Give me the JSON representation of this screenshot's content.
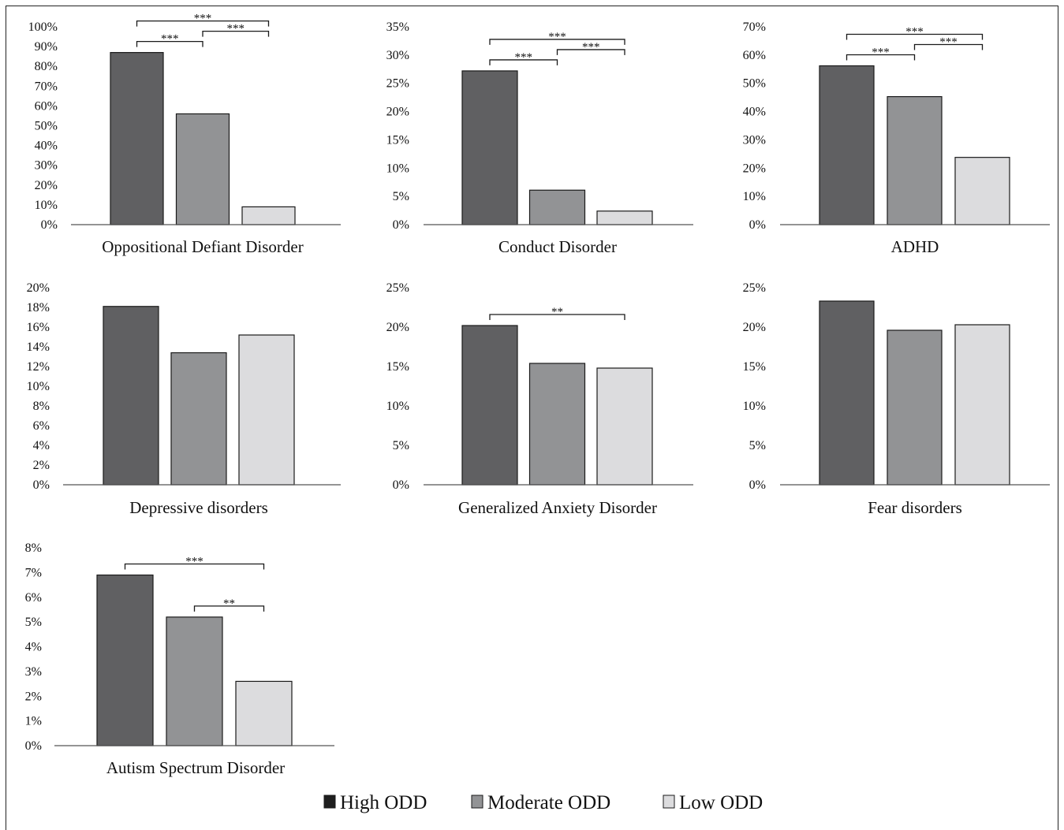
{
  "legend": [
    {
      "label": "High ODD",
      "color": "#606062"
    },
    {
      "label": "Moderate ODD",
      "color": "#929395"
    },
    {
      "label": "Low ODD",
      "color": "#dcdcde"
    }
  ],
  "chart_data": [
    {
      "type": "bar",
      "title": "Oppositional Defiant Disorder",
      "categories": [
        "High ODD",
        "Moderate ODD",
        "Low ODD"
      ],
      "values": [
        87,
        56,
        9
      ],
      "ylim": [
        0,
        100
      ],
      "yticks": [
        "0%",
        "10%",
        "20%",
        "30%",
        "40%",
        "50%",
        "60%",
        "70%",
        "80%",
        "90%",
        "100%"
      ],
      "significance": [
        {
          "from": 0,
          "to": 2,
          "label": "***"
        },
        {
          "from": 0,
          "to": 1,
          "label": "***"
        },
        {
          "from": 1,
          "to": 2,
          "label": "***"
        }
      ]
    },
    {
      "type": "bar",
      "title": "Conduct Disorder",
      "categories": [
        "High ODD",
        "Moderate ODD",
        "Low ODD"
      ],
      "values": [
        27.2,
        6.1,
        2.4
      ],
      "ylim": [
        0,
        35
      ],
      "yticks": [
        "0%",
        "5%",
        "10%",
        "15%",
        "20%",
        "25%",
        "30%",
        "35%"
      ],
      "significance": [
        {
          "from": 0,
          "to": 2,
          "label": "***"
        },
        {
          "from": 0,
          "to": 1,
          "label": "***"
        },
        {
          "from": 1,
          "to": 2,
          "label": "***"
        }
      ]
    },
    {
      "type": "bar",
      "title": "ADHD",
      "categories": [
        "High ODD",
        "Moderate ODD",
        "Low ODD"
      ],
      "values": [
        56.2,
        45.3,
        23.8
      ],
      "ylim": [
        0,
        70
      ],
      "yticks": [
        "0%",
        "10%",
        "20%",
        "30%",
        "40%",
        "50%",
        "60%",
        "70%"
      ],
      "significance": [
        {
          "from": 0,
          "to": 2,
          "label": "***"
        },
        {
          "from": 0,
          "to": 1,
          "label": "***"
        },
        {
          "from": 1,
          "to": 2,
          "label": "***"
        }
      ]
    },
    {
      "type": "bar",
      "title": "Depressive disorders",
      "categories": [
        "High ODD",
        "Moderate ODD",
        "Low ODD"
      ],
      "values": [
        18.1,
        13.4,
        15.2
      ],
      "ylim": [
        0,
        20
      ],
      "yticks": [
        "0%",
        "2%",
        "4%",
        "6%",
        "8%",
        "10%",
        "12%",
        "14%",
        "16%",
        "18%",
        "20%"
      ],
      "significance": []
    },
    {
      "type": "bar",
      "title": "Generalized Anxiety Disorder",
      "categories": [
        "High ODD",
        "Moderate ODD",
        "Low ODD"
      ],
      "values": [
        20.2,
        15.4,
        14.8
      ],
      "ylim": [
        0,
        25
      ],
      "yticks": [
        "0%",
        "5%",
        "10%",
        "15%",
        "20%",
        "25%"
      ],
      "significance": [
        {
          "from": 0,
          "to": 2,
          "label": "**"
        }
      ]
    },
    {
      "type": "bar",
      "title": "Fear disorders",
      "categories": [
        "High ODD",
        "Moderate ODD",
        "Low ODD"
      ],
      "values": [
        23.3,
        19.6,
        20.3
      ],
      "ylim": [
        0,
        25
      ],
      "yticks": [
        "0%",
        "5%",
        "10%",
        "15%",
        "20%",
        "25%"
      ],
      "significance": []
    },
    {
      "type": "bar",
      "title": "Autism Spectrum Disorder",
      "categories": [
        "High ODD",
        "Moderate ODD",
        "Low ODD"
      ],
      "values": [
        6.9,
        5.2,
        2.6
      ],
      "ylim": [
        0,
        8
      ],
      "yticks": [
        "0%",
        "1%",
        "2%",
        "3%",
        "4%",
        "5%",
        "6%",
        "7%",
        "8%"
      ],
      "significance": [
        {
          "from": 0,
          "to": 2,
          "label": "***"
        },
        {
          "from": 1,
          "to": 2,
          "label": "**"
        }
      ]
    }
  ]
}
